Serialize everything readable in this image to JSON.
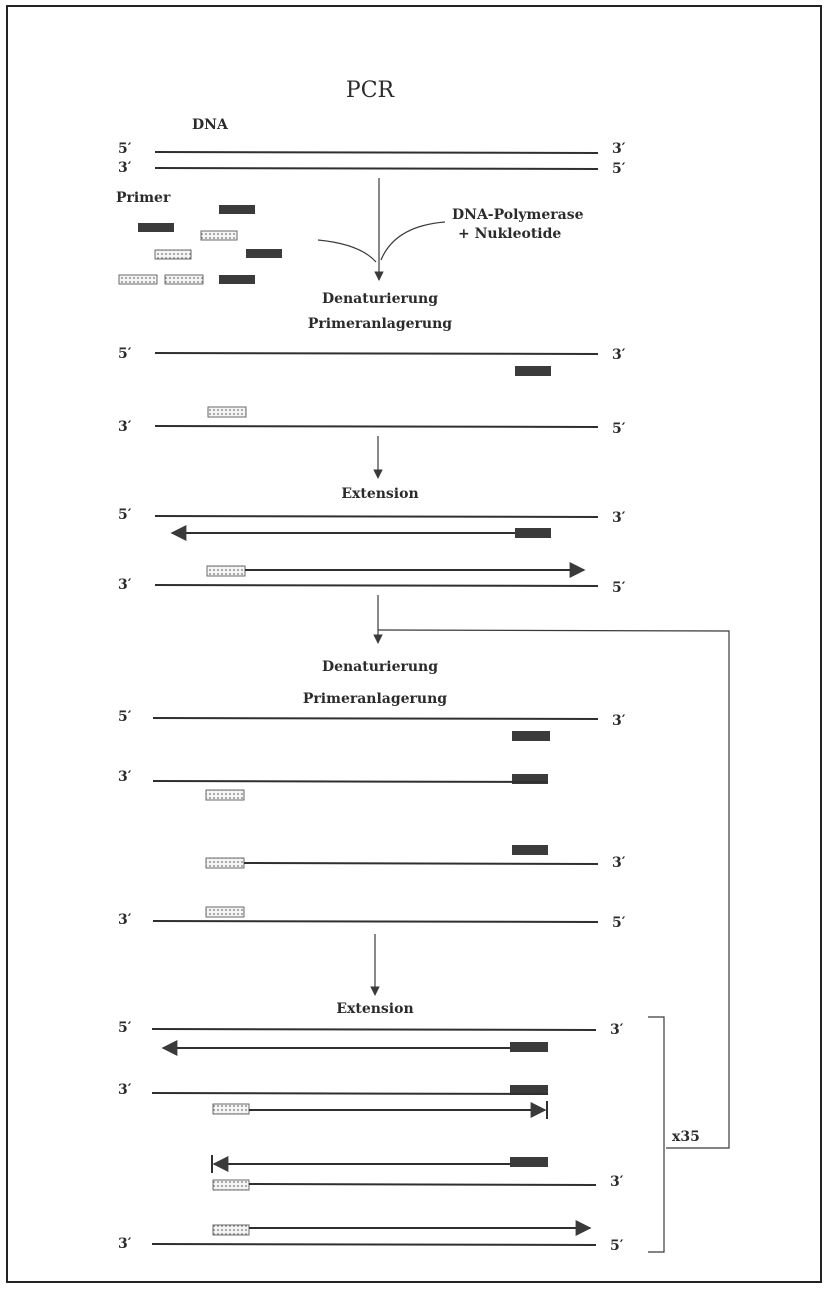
{
  "diagram": {
    "title": "PCR",
    "colors": {
      "strand": "#2f2f2f",
      "primer_dark": "#3b3b3b",
      "primer_light": "#f4f4f4"
    },
    "labels": {
      "dna": "DNA",
      "primer": "Primer",
      "polymerase_line1": "DNA-Polymerase",
      "polymerase_line2": "+ Nukleotide",
      "denaturation_1": "Denaturierung",
      "annealing_1": "Primeranlagerung",
      "extension_1": "Extension",
      "denaturation_2": "Denaturierung",
      "annealing_2": "Primeranlagerung",
      "extension_2": "Extension",
      "cycles": "x35"
    },
    "ends": {
      "five": "5′",
      "three": "3′"
    }
  }
}
